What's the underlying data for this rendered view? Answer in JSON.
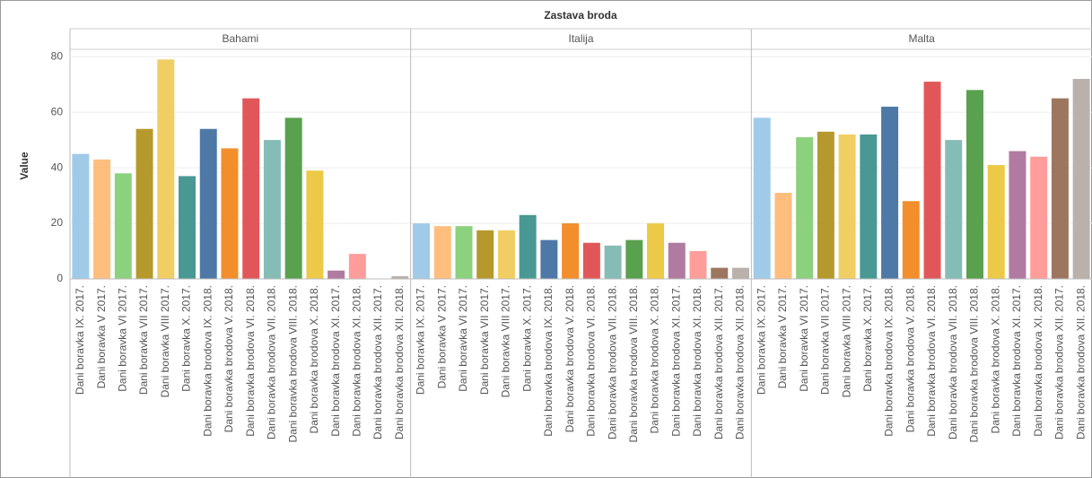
{
  "chart_data": {
    "type": "bar",
    "title": "Zastava broda",
    "y_label": "Value",
    "ylim": [
      0,
      82
    ],
    "yticks": [
      0,
      20,
      40,
      60,
      80
    ],
    "grid": true,
    "categories": [
      "Dani boravka IX. 2017.",
      "Dani boravka V 2017.",
      "Dani boravka VI 2017.",
      "Dani boravka VII 2017.",
      "Dani boravka VIII 2017.",
      "Dani boravka X. 2017.",
      "Dani boravka brodova IX. 2018.",
      "Dani boravka brodova V. 2018.",
      "Dani boravka brodova VI. 2018.",
      "Dani boravka brodova VII. 2018.",
      "Dani boravka brodova VIII. 2018.",
      "Dani boravka brodova X. 2018.",
      "Dani boravka brodova XI. 2017.",
      "Dani boravka brodova XI. 2018.",
      "Dani boravka brodova XII. 2017.",
      "Dani boravka brodova XII. 2018."
    ],
    "colors": [
      "#a0cbe8",
      "#ffbe7d",
      "#8cd17d",
      "#b6992d",
      "#f1ce63",
      "#499894",
      "#4e79a7",
      "#f28e2b",
      "#e15759",
      "#86bcb6",
      "#59a14f",
      "#edc948",
      "#b07aa1",
      "#ff9d9a",
      "#9d7660",
      "#bab0ac"
    ],
    "facets": [
      {
        "name": "Bahami",
        "values": [
          45,
          43,
          38,
          54,
          79,
          37,
          54,
          47,
          65,
          50,
          58,
          39,
          3,
          9,
          0,
          1
        ]
      },
      {
        "name": "Italija",
        "values": [
          20,
          19,
          19,
          17.5,
          17.5,
          23,
          14,
          20,
          13,
          12,
          14,
          20,
          13,
          10,
          4,
          4
        ]
      },
      {
        "name": "Malta",
        "values": [
          58,
          31,
          51,
          53,
          52,
          52,
          62,
          28,
          71,
          50,
          68,
          41,
          46,
          44,
          65,
          72
        ]
      }
    ]
  }
}
